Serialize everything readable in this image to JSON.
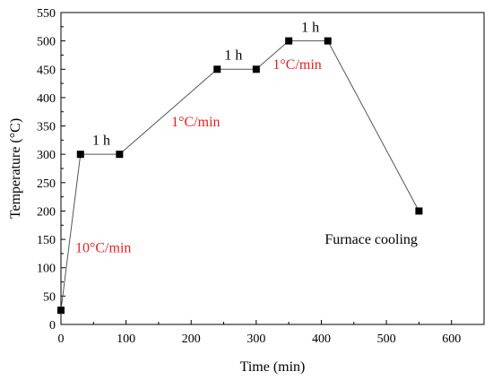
{
  "chart_data": {
    "type": "line",
    "xlabel": "Time (min)",
    "ylabel": "Temperature (°C)",
    "xlim": [
      0,
      650
    ],
    "ylim": [
      0,
      550
    ],
    "x_ticks": [
      "0",
      "100",
      "200",
      "300",
      "400",
      "500",
      "600"
    ],
    "y_ticks": [
      "0",
      "50",
      "100",
      "150",
      "200",
      "250",
      "300",
      "350",
      "400",
      "450",
      "500",
      "550"
    ],
    "series": [
      {
        "x": [
          0,
          30,
          90,
          240,
          300,
          350,
          410,
          550
        ],
        "y": [
          25,
          300,
          300,
          450,
          450,
          500,
          500,
          200
        ]
      }
    ],
    "annotations": [
      {
        "text": "1 h",
        "x": 62,
        "y": 325,
        "color": "#000000"
      },
      {
        "text": "1 h",
        "x": 265,
        "y": 475,
        "color": "#000000"
      },
      {
        "text": "1 h",
        "x": 383,
        "y": 524,
        "color": "#000000"
      },
      {
        "text": "10°C/min",
        "x": 65,
        "y": 135,
        "color": "#e8231f"
      },
      {
        "text": "1°C/min",
        "x": 207,
        "y": 357,
        "color": "#e8231f"
      },
      {
        "text": "1°C/min",
        "x": 363,
        "y": 458,
        "color": "#e8231f"
      },
      {
        "text": "Furnace cooling",
        "x": 548,
        "y": 150,
        "color": "#000000"
      }
    ],
    "line_color": "#555555",
    "marker_color": "#000000"
  }
}
